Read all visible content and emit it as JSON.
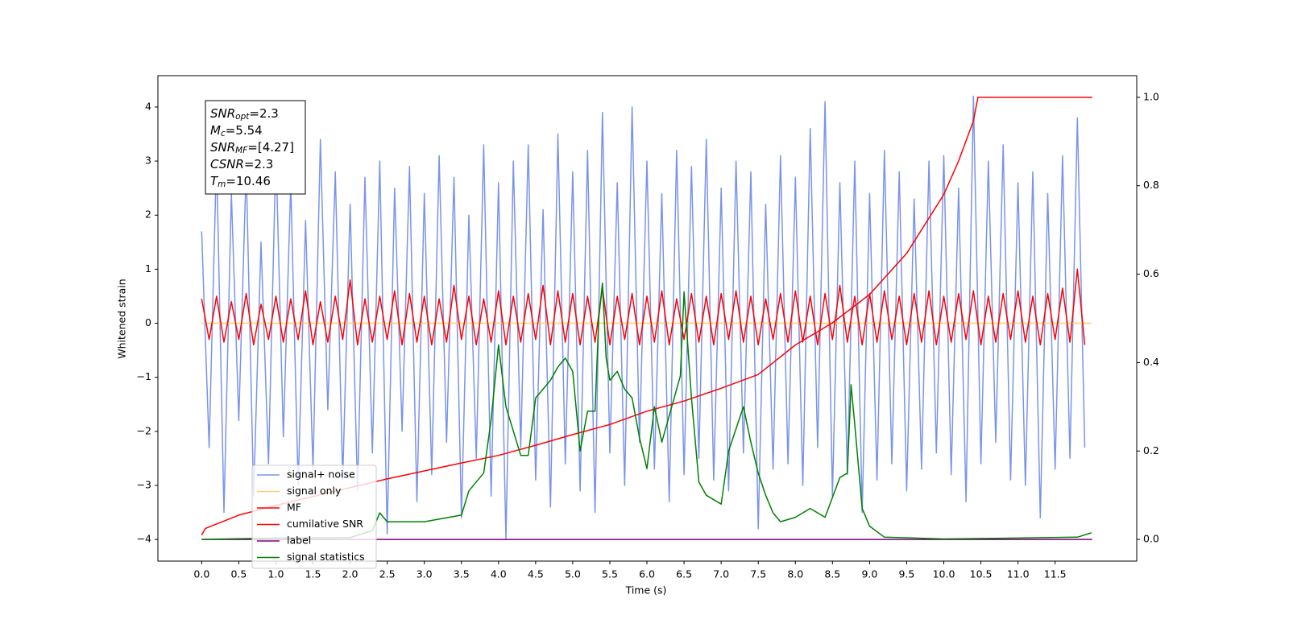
{
  "chart_data": {
    "type": "line",
    "xlabel": "Time (s)",
    "ylabel": "Whitened strain",
    "xlim": [
      -0.59,
      12.6
    ],
    "ylim": [
      -4.4,
      4.58
    ],
    "y2lim": [
      -0.049,
      1.049
    ],
    "xticks": [
      {
        "value": 0,
        "label": "0.0"
      },
      {
        "value": 0.5,
        "label": "0.5"
      },
      {
        "value": 1,
        "label": "1.0"
      },
      {
        "value": 1.5,
        "label": "1.5"
      },
      {
        "value": 2,
        "label": "2.0"
      },
      {
        "value": 2.5,
        "label": "2.5"
      },
      {
        "value": 3,
        "label": "3.0"
      },
      {
        "value": 3.5,
        "label": "3.5"
      },
      {
        "value": 4,
        "label": "4.0"
      },
      {
        "value": 4.5,
        "label": "4.5"
      },
      {
        "value": 5,
        "label": "5.0"
      },
      {
        "value": 5.5,
        "label": "5.5"
      },
      {
        "value": 6,
        "label": "6.0"
      },
      {
        "value": 6.5,
        "label": "6.5"
      },
      {
        "value": 7,
        "label": "7.0"
      },
      {
        "value": 7.5,
        "label": "7.5"
      },
      {
        "value": 8,
        "label": "8.0"
      },
      {
        "value": 8.5,
        "label": "8.5"
      },
      {
        "value": 9,
        "label": "9.0"
      },
      {
        "value": 9.5,
        "label": "9.5"
      },
      {
        "value": 10,
        "label": "10.0"
      },
      {
        "value": 10.5,
        "label": "10.5"
      },
      {
        "value": 11,
        "label": "11.0"
      },
      {
        "value": 11.5,
        "label": "11.5"
      }
    ],
    "yticks": [
      {
        "value": -4,
        "label": "−4"
      },
      {
        "value": -3,
        "label": "−3"
      },
      {
        "value": -2,
        "label": "−2"
      },
      {
        "value": -1,
        "label": "−1"
      },
      0,
      1,
      2,
      3,
      4
    ],
    "y2ticks": [
      {
        "value": 0,
        "label": "0.0"
      },
      {
        "value": 0.2,
        "label": "0.2"
      },
      {
        "value": 0.4,
        "label": "0.4"
      },
      {
        "value": 0.6,
        "label": "0.6"
      },
      {
        "value": 0.8,
        "label": "0.8"
      },
      {
        "value": 1,
        "label": "1.0"
      }
    ],
    "annotation": [
      {
        "symbol": "SNR",
        "subscript": "opt",
        "text": "=2.3"
      },
      {
        "symbol": "M",
        "subscript": "c",
        "text": "=5.54"
      },
      {
        "symbol": "SNR",
        "subscript": "MF",
        "text": "=[4.27]"
      },
      {
        "symbol": "CSNR",
        "text": "=2.3"
      },
      {
        "symbol": "T",
        "subscript": "m",
        "text": "=10.46"
      }
    ],
    "x": [
      0,
      0.1,
      0.2,
      0.3,
      0.4,
      0.5,
      0.6,
      0.7,
      0.8,
      0.9,
      1,
      1.1,
      1.2,
      1.3,
      1.4,
      1.5,
      1.6,
      1.7,
      1.8,
      1.9,
      2,
      2.1,
      2.2,
      2.3,
      2.4,
      2.5,
      2.6,
      2.7,
      2.8,
      2.9,
      3,
      3.1,
      3.2,
      3.3,
      3.4,
      3.5,
      3.6,
      3.7,
      3.8,
      3.9,
      4,
      4.1,
      4.2,
      4.3,
      4.4,
      4.5,
      4.6,
      4.7,
      4.8,
      4.9,
      5,
      5.1,
      5.2,
      5.3,
      5.4,
      5.5,
      5.6,
      5.7,
      5.8,
      5.9,
      6,
      6.1,
      6.2,
      6.3,
      6.4,
      6.5,
      6.6,
      6.7,
      6.8,
      6.9,
      7,
      7.1,
      7.2,
      7.3,
      7.4,
      7.5,
      7.6,
      7.7,
      7.8,
      7.9,
      8,
      8.1,
      8.2,
      8.3,
      8.4,
      8.5,
      8.6,
      8.7,
      8.8,
      8.9,
      9,
      9.1,
      9.2,
      9.3,
      9.4,
      9.5,
      9.6,
      9.7,
      9.8,
      9.9,
      10,
      10.1,
      10.2,
      10.3,
      10.4,
      10.5,
      10.6,
      10.7,
      10.8,
      10.9,
      11,
      11.1,
      11.2,
      11.3,
      11.4,
      11.5,
      11.6,
      11.7,
      11.8,
      11.9
    ],
    "series": [
      {
        "name": "signal+ noise",
        "color": "#7a94e8",
        "values": [
          1.7,
          -2.3,
          3.1,
          -3.5,
          2.4,
          -1.8,
          2.9,
          -3.2,
          1.5,
          -2.6,
          3.2,
          -2.1,
          2.6,
          -3.0,
          1.9,
          -2.7,
          3.4,
          -1.6,
          2.8,
          -2.9,
          2.2,
          -3.1,
          2.7,
          -2.4,
          3.0,
          -3.9,
          2.5,
          -2.0,
          2.9,
          -3.3,
          2.4,
          -2.8,
          3.1,
          -2.2,
          2.7,
          -3.6,
          2.0,
          -2.5,
          3.3,
          -3.2,
          2.6,
          -4.0,
          3.0,
          -2.3,
          3.3,
          -2.9,
          2.1,
          -3.4,
          3.5,
          -2.6,
          2.8,
          -3.1,
          3.2,
          -3.5,
          3.9,
          -2.4,
          2.6,
          -3.0,
          4.0,
          -2.2,
          3.0,
          -2.7,
          2.4,
          -3.3,
          3.2,
          -2.8,
          2.9,
          -2.5,
          3.4,
          -2.9,
          2.5,
          -3.1,
          3.0,
          -2.4,
          2.8,
          -3.8,
          2.2,
          -2.7,
          3.1,
          -2.6,
          2.7,
          -3.0,
          3.6,
          -2.3,
          4.1,
          -3.2,
          2.6,
          -2.8,
          3.0,
          -3.5,
          2.4,
          -2.9,
          3.2,
          -2.6,
          2.8,
          -3.1,
          2.3,
          -2.7,
          3.0,
          -2.4,
          3.1,
          -2.8,
          2.5,
          -3.3,
          4.2,
          -2.6,
          3.0,
          -2.2,
          3.3,
          -2.9,
          2.6,
          -3.0,
          2.8,
          -3.6,
          2.4,
          -2.7,
          3.1,
          -2.5,
          3.8,
          -2.3
        ]
      },
      {
        "name": "signal only",
        "color": "#ffcc77",
        "x": [
          0,
          11.99
        ],
        "values": [
          0,
          0
        ]
      },
      {
        "name": "MF",
        "color": "#ff0000",
        "values": [
          0.45,
          -0.3,
          0.5,
          -0.35,
          0.4,
          -0.3,
          0.55,
          -0.4,
          0.35,
          -0.3,
          0.5,
          -0.35,
          0.45,
          -0.3,
          0.6,
          -0.4,
          0.4,
          -0.35,
          0.5,
          -0.3,
          0.8,
          -0.4,
          0.45,
          -0.35,
          0.5,
          -0.3,
          0.6,
          -0.4,
          0.55,
          -0.35,
          0.5,
          -0.4,
          0.45,
          -0.35,
          0.7,
          -0.3,
          0.5,
          -0.4,
          0.45,
          -0.35,
          0.6,
          -0.4,
          0.5,
          -0.35,
          0.55,
          -0.3,
          0.7,
          -0.4,
          0.6,
          -0.35,
          0.55,
          -0.4,
          0.5,
          -0.35,
          0.65,
          -0.4,
          0.5,
          -0.3,
          0.55,
          -0.4,
          0.5,
          -0.35,
          0.6,
          -0.4,
          0.45,
          -0.3,
          0.55,
          -0.35,
          0.5,
          -0.4,
          0.55,
          -0.3,
          0.6,
          -0.35,
          0.5,
          -0.4,
          0.45,
          -0.3,
          0.55,
          -0.35,
          0.6,
          -0.35,
          0.5,
          -0.4,
          0.55,
          -0.3,
          0.7,
          -0.35,
          0.5,
          -0.4,
          0.55,
          -0.35,
          0.6,
          -0.3,
          0.5,
          -0.4,
          0.55,
          -0.35,
          0.6,
          -0.4,
          0.5,
          -0.35,
          0.55,
          -0.3,
          0.6,
          -0.4,
          0.5,
          -0.35,
          0.55,
          -0.3,
          0.6,
          -0.35,
          0.5,
          -0.4,
          0.55,
          -0.3,
          0.65,
          -0.35,
          1.0,
          -0.4
        ]
      },
      {
        "name": "cumilative SNR",
        "color": "#ff0000",
        "axis": "y2",
        "x": [
          0,
          0.05,
          0.5,
          1,
          1.5,
          2,
          2.5,
          3,
          3.5,
          4,
          4.5,
          5,
          5.5,
          6,
          6.5,
          7,
          7.5,
          8,
          8.5,
          9,
          9.5,
          10,
          10.2,
          10.4,
          10.46,
          12
        ],
        "values": [
          0.01,
          0.025,
          0.055,
          0.077,
          0.097,
          0.117,
          0.137,
          0.155,
          0.173,
          0.19,
          0.213,
          0.237,
          0.26,
          0.29,
          0.313,
          0.342,
          0.373,
          0.44,
          0.49,
          0.554,
          0.647,
          0.78,
          0.856,
          0.947,
          1.0,
          1.0
        ]
      },
      {
        "name": "label",
        "color": "#800080",
        "axis": "y2",
        "x": [
          0,
          12
        ],
        "values": [
          0,
          0
        ]
      },
      {
        "name": "signal statistics",
        "color": "#008000",
        "axis": "y2",
        "x": [
          0,
          1,
          2,
          2.3,
          2.4,
          2.5,
          3,
          3.5,
          3.6,
          3.8,
          3.9,
          4.0,
          4.1,
          4.3,
          4.4,
          4.5,
          4.7,
          4.8,
          4.9,
          5.0,
          5.1,
          5.2,
          5.3,
          5.35,
          5.4,
          5.45,
          5.5,
          5.6,
          5.7,
          5.8,
          5.9,
          6.0,
          6.1,
          6.2,
          6.3,
          6.45,
          6.5,
          6.6,
          6.7,
          6.8,
          6.9,
          7.0,
          7.1,
          7.2,
          7.3,
          7.4,
          7.5,
          7.6,
          7.7,
          7.8,
          8.0,
          8.2,
          8.4,
          8.6,
          8.7,
          8.75,
          8.8,
          8.9,
          9.0,
          9.2,
          10,
          11,
          11.8,
          11.99
        ],
        "values": [
          0,
          0.003,
          0.004,
          0.02,
          0.06,
          0.04,
          0.04,
          0.055,
          0.11,
          0.15,
          0.27,
          0.44,
          0.3,
          0.19,
          0.19,
          0.32,
          0.36,
          0.39,
          0.41,
          0.38,
          0.2,
          0.29,
          0.29,
          0.5,
          0.58,
          0.41,
          0.36,
          0.38,
          0.34,
          0.32,
          0.23,
          0.16,
          0.3,
          0.22,
          0.28,
          0.37,
          0.56,
          0.32,
          0.13,
          0.1,
          0.09,
          0.08,
          0.2,
          0.25,
          0.3,
          0.22,
          0.15,
          0.1,
          0.06,
          0.04,
          0.05,
          0.07,
          0.05,
          0.14,
          0.15,
          0.35,
          0.26,
          0.07,
          0.03,
          0.005,
          0.001,
          0.003,
          0.005,
          0.015
        ]
      }
    ]
  }
}
